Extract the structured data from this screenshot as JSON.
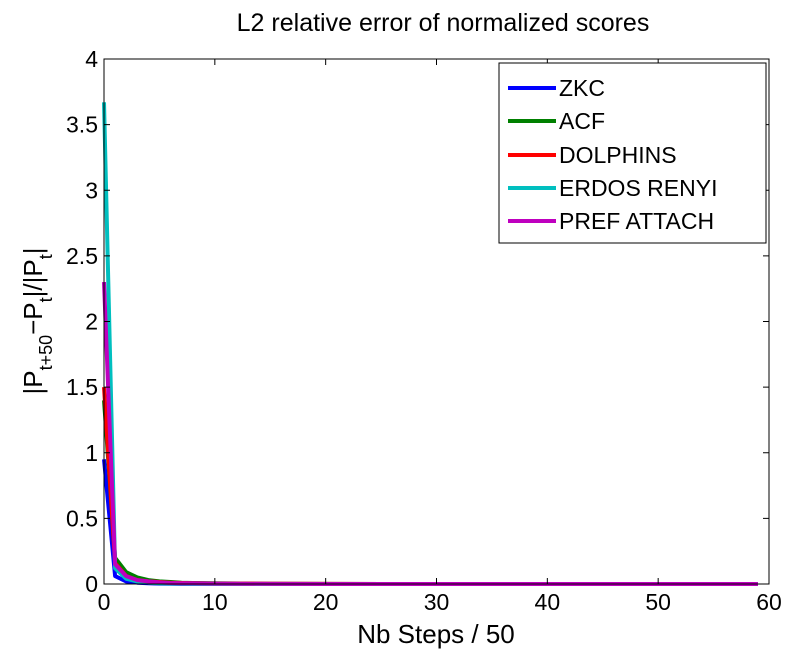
{
  "colors": {
    "ZKC": "#0000ff",
    "ACF": "#008000",
    "DOLPHINS": "#ff0000",
    "ERDOS RENYI": "#00bfbf",
    "PREF ATTACH": "#bf00bf"
  },
  "chart_data": {
    "type": "line",
    "title": "L2 relative error of normalized scores",
    "xlabel": "Nb Steps / 50",
    "ylabel": {
      "base": "|P",
      "sub1": "t+50",
      "mid": "−P",
      "sub2": "t",
      "mid2": "|/|P",
      "sub3": "t",
      "end": "|"
    },
    "xlim": [
      0,
      60
    ],
    "ylim": [
      0,
      4
    ],
    "xticks": [
      0,
      10,
      20,
      30,
      40,
      50,
      60
    ],
    "yticks": [
      0,
      0.5,
      1,
      1.5,
      2,
      2.5,
      3,
      3.5,
      4
    ],
    "ytick_labels": [
      "0",
      "0.5",
      "1",
      "1.5",
      "2",
      "2.5",
      "3",
      "3.5",
      "4"
    ],
    "legend_position": "top-right",
    "grid": false,
    "x": [
      0,
      1,
      2,
      3,
      4,
      5,
      6,
      7,
      8,
      10,
      15,
      20,
      30,
      40,
      50,
      59
    ],
    "series": [
      {
        "name": "ZKC",
        "values": [
          0.95,
          0.06,
          0.02,
          0.01,
          0.005,
          0.003,
          0.002,
          0.001,
          0.001,
          0.001,
          0,
          0,
          0,
          0,
          0,
          0
        ]
      },
      {
        "name": "ACF",
        "values": [
          1.4,
          0.2,
          0.09,
          0.05,
          0.03,
          0.02,
          0.015,
          0.01,
          0.008,
          0.005,
          0.002,
          0.001,
          0,
          0,
          0,
          0
        ]
      },
      {
        "name": "DOLPHINS",
        "values": [
          1.5,
          0.16,
          0.06,
          0.03,
          0.02,
          0.015,
          0.01,
          0.008,
          0.006,
          0.004,
          0.002,
          0.001,
          0,
          0,
          0,
          0
        ]
      },
      {
        "name": "ERDOS RENYI",
        "values": [
          3.67,
          0.12,
          0.04,
          0.02,
          0.01,
          0.006,
          0.004,
          0.003,
          0.002,
          0.001,
          0,
          0,
          0,
          0,
          0,
          0
        ]
      },
      {
        "name": "PREF ATTACH",
        "values": [
          2.3,
          0.15,
          0.06,
          0.03,
          0.02,
          0.012,
          0.008,
          0.006,
          0.005,
          0.003,
          0.001,
          0,
          0,
          0,
          0,
          0
        ]
      }
    ]
  }
}
